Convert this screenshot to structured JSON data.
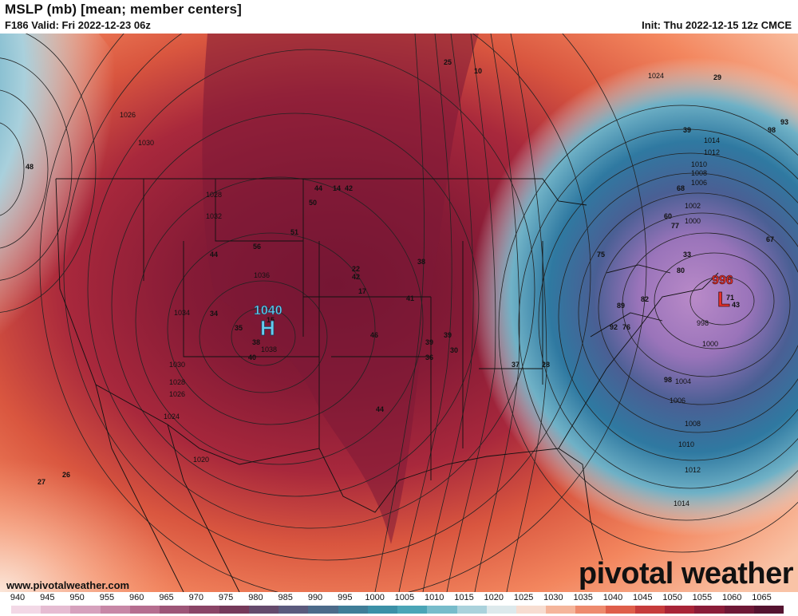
{
  "header": {
    "title": "MSLP (mb) [mean; member centers]",
    "valid": "F186 Valid: Fri 2022-12-23 06z",
    "init": "Init: Thu 2022-12-15 12z CMCE"
  },
  "footer": {
    "url": "www.pivotalweather.com",
    "brand": "pivotal weather"
  },
  "map": {
    "high_center": {
      "value": "1040",
      "letter": "H",
      "color": "#66ccf0"
    },
    "low_center": {
      "value": "996",
      "letter": "L",
      "color": "#e5312b"
    },
    "isobar_labels": [
      "1026",
      "1030",
      "1028",
      "1032",
      "1036",
      "1034",
      "1038",
      "1030",
      "1028",
      "1026",
      "1024",
      "1020",
      "1024",
      "1014",
      "1012",
      "1010",
      "1008",
      "1006",
      "1002",
      "1000",
      "998",
      "1000",
      "1004",
      "1006",
      "1008",
      "1010",
      "1012",
      "1014"
    ],
    "member_labels": [
      "25",
      "10",
      "29",
      "93",
      "98",
      "39",
      "68",
      "60",
      "77",
      "67",
      "75",
      "33",
      "80",
      "71",
      "43",
      "89",
      "82",
      "92",
      "76",
      "98",
      "14",
      "42",
      "44",
      "50",
      "51",
      "56",
      "44",
      "22",
      "42",
      "17",
      "34",
      "35",
      "38",
      "40",
      "15",
      "46",
      "38",
      "41",
      "39",
      "30",
      "39",
      "36",
      "37",
      "28",
      "44",
      "27",
      "26",
      "48"
    ]
  },
  "colorbar": {
    "labels": [
      "940",
      "945",
      "950",
      "955",
      "960",
      "965",
      "970",
      "975",
      "980",
      "985",
      "990",
      "995",
      "1000",
      "1005",
      "1010",
      "1015",
      "1020",
      "1025",
      "1030",
      "1035",
      "1040",
      "1045",
      "1050",
      "1055",
      "1060",
      "1065"
    ],
    "colors": [
      "#f3d8e6",
      "#e6bcd2",
      "#d6a1bd",
      "#c787a6",
      "#b56d8f",
      "#9d5577",
      "#8a4466",
      "#75395a",
      "#654a6c",
      "#5b5a7d",
      "#4c6a8a",
      "#3f7d98",
      "#3b90a7",
      "#4aa5b7",
      "#77bccb",
      "#aad2dc",
      "#dde9ec",
      "#f7ddd1",
      "#f5b59b",
      "#ee8a6d",
      "#df5e4a",
      "#c63b3b",
      "#a82437",
      "#8a1c38",
      "#6e1836",
      "#551330"
    ]
  }
}
